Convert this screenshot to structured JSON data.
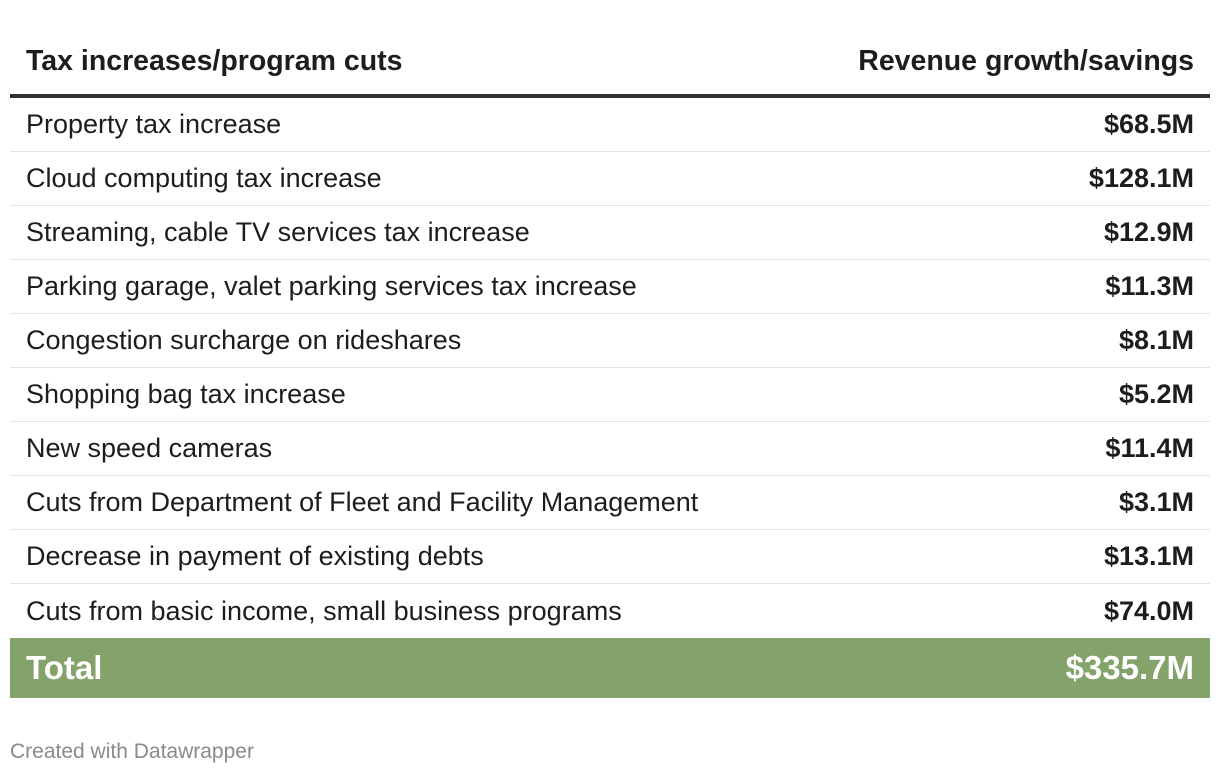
{
  "colors": {
    "total_bg": "#84a36b",
    "header_rule": "#333333"
  },
  "chart_data": {
    "type": "table",
    "columns": [
      "Tax increases/program cuts",
      "Revenue growth/savings"
    ],
    "rows": [
      {
        "label": "Property tax increase",
        "value": "$68.5M"
      },
      {
        "label": "Cloud computing tax increase",
        "value": "$128.1M"
      },
      {
        "label": "Streaming, cable TV services tax increase",
        "value": "$12.9M"
      },
      {
        "label": "Parking garage, valet parking services tax increase",
        "value": "$11.3M"
      },
      {
        "label": "Congestion surcharge on rideshares",
        "value": "$8.1M"
      },
      {
        "label": "Shopping bag tax increase",
        "value": "$5.2M"
      },
      {
        "label": "New speed cameras",
        "value": "$11.4M"
      },
      {
        "label": "Cuts from Department of Fleet and Facility Management",
        "value": "$3.1M"
      },
      {
        "label": "Decrease in payment of existing debts",
        "value": "$13.1M"
      },
      {
        "label": "Cuts from basic income, small business programs",
        "value": "$74.0M"
      }
    ],
    "total": {
      "label": "Total",
      "value": "$335.7M"
    }
  },
  "footer": {
    "credit": "Created with Datawrapper"
  }
}
